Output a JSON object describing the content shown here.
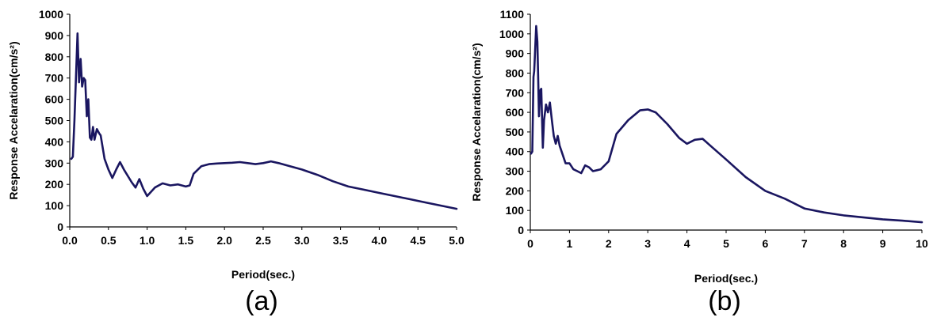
{
  "colors": {
    "series": "#1a1660",
    "axis": "#000000"
  },
  "chart_data": [
    {
      "type": "line",
      "caption": "(a)",
      "xlabel": "Period(sec.)",
      "ylabel": "Response Accelaration(cm/s²)",
      "xlim": [
        0,
        5
      ],
      "ylim": [
        0,
        1000
      ],
      "xticks": [
        0,
        0.5,
        1,
        1.5,
        2,
        2.5,
        3,
        3.5,
        4,
        4.5,
        5
      ],
      "xtick_labels": [
        "0.0",
        "0.5",
        "1.0",
        "1.5",
        "2.0",
        "2.5",
        "3.0",
        "3.5",
        "4.0",
        "4.5",
        "5.0"
      ],
      "yticks": [
        0,
        100,
        200,
        300,
        400,
        500,
        600,
        700,
        800,
        900,
        1000
      ],
      "ytick_labels": [
        "0",
        "100",
        "200",
        "300",
        "400",
        "500",
        "600",
        "700",
        "800",
        "900",
        "1000"
      ],
      "grid": false,
      "x": [
        0.02,
        0.04,
        0.06,
        0.08,
        0.1,
        0.12,
        0.14,
        0.16,
        0.18,
        0.2,
        0.22,
        0.24,
        0.26,
        0.28,
        0.3,
        0.32,
        0.35,
        0.38,
        0.4,
        0.45,
        0.5,
        0.55,
        0.6,
        0.65,
        0.7,
        0.8,
        0.85,
        0.9,
        0.95,
        1.0,
        1.05,
        1.1,
        1.2,
        1.3,
        1.4,
        1.5,
        1.55,
        1.6,
        1.7,
        1.8,
        1.9,
        2.0,
        2.1,
        2.2,
        2.3,
        2.4,
        2.5,
        2.6,
        2.7,
        2.8,
        3.0,
        3.2,
        3.4,
        3.6,
        3.8,
        4.0,
        4.2,
        4.4,
        4.6,
        4.8,
        5.0
      ],
      "y": [
        320,
        330,
        500,
        700,
        910,
        680,
        790,
        660,
        700,
        690,
        520,
        600,
        420,
        410,
        470,
        410,
        460,
        440,
        430,
        320,
        270,
        230,
        270,
        305,
        270,
        210,
        185,
        225,
        180,
        145,
        165,
        185,
        205,
        195,
        200,
        190,
        195,
        250,
        285,
        295,
        298,
        300,
        302,
        305,
        300,
        295,
        300,
        308,
        300,
        290,
        270,
        245,
        215,
        190,
        175,
        160,
        145,
        130,
        115,
        100,
        85
      ]
    },
    {
      "type": "line",
      "caption": "(b)",
      "xlabel": "Period(sec.)",
      "ylabel": "Response Accelaration(cm/s²)",
      "xlim": [
        0,
        10
      ],
      "ylim": [
        0,
        1100
      ],
      "xticks": [
        0,
        1,
        2,
        3,
        4,
        5,
        6,
        7,
        8,
        9,
        10
      ],
      "xtick_labels": [
        "0",
        "1",
        "2",
        "3",
        "4",
        "5",
        "6",
        "7",
        "8",
        "9",
        "10"
      ],
      "yticks": [
        0,
        100,
        200,
        300,
        400,
        500,
        600,
        700,
        800,
        900,
        1000,
        1100
      ],
      "ytick_labels": [
        "0",
        "100",
        "200",
        "300",
        "400",
        "500",
        "600",
        "700",
        "800",
        "900",
        "1000",
        "1100"
      ],
      "grid": false,
      "x": [
        0.02,
        0.05,
        0.08,
        0.1,
        0.12,
        0.15,
        0.18,
        0.2,
        0.22,
        0.25,
        0.28,
        0.32,
        0.35,
        0.4,
        0.45,
        0.5,
        0.55,
        0.6,
        0.65,
        0.7,
        0.75,
        0.8,
        0.9,
        1.0,
        1.1,
        1.2,
        1.3,
        1.4,
        1.5,
        1.6,
        1.7,
        1.8,
        2.0,
        2.2,
        2.5,
        2.8,
        3.0,
        3.2,
        3.5,
        3.8,
        4.0,
        4.2,
        4.4,
        4.6,
        5.0,
        5.5,
        6.0,
        6.5,
        7.0,
        7.5,
        8.0,
        8.5,
        9.0,
        9.5,
        10.0
      ],
      "y": [
        390,
        400,
        780,
        810,
        900,
        1040,
        960,
        780,
        580,
        710,
        720,
        420,
        560,
        640,
        600,
        650,
        560,
        480,
        440,
        480,
        430,
        400,
        340,
        340,
        310,
        300,
        290,
        330,
        320,
        300,
        305,
        310,
        350,
        490,
        560,
        610,
        615,
        600,
        540,
        470,
        440,
        460,
        465,
        430,
        360,
        270,
        200,
        160,
        110,
        90,
        75,
        65,
        55,
        48,
        40
      ]
    }
  ]
}
